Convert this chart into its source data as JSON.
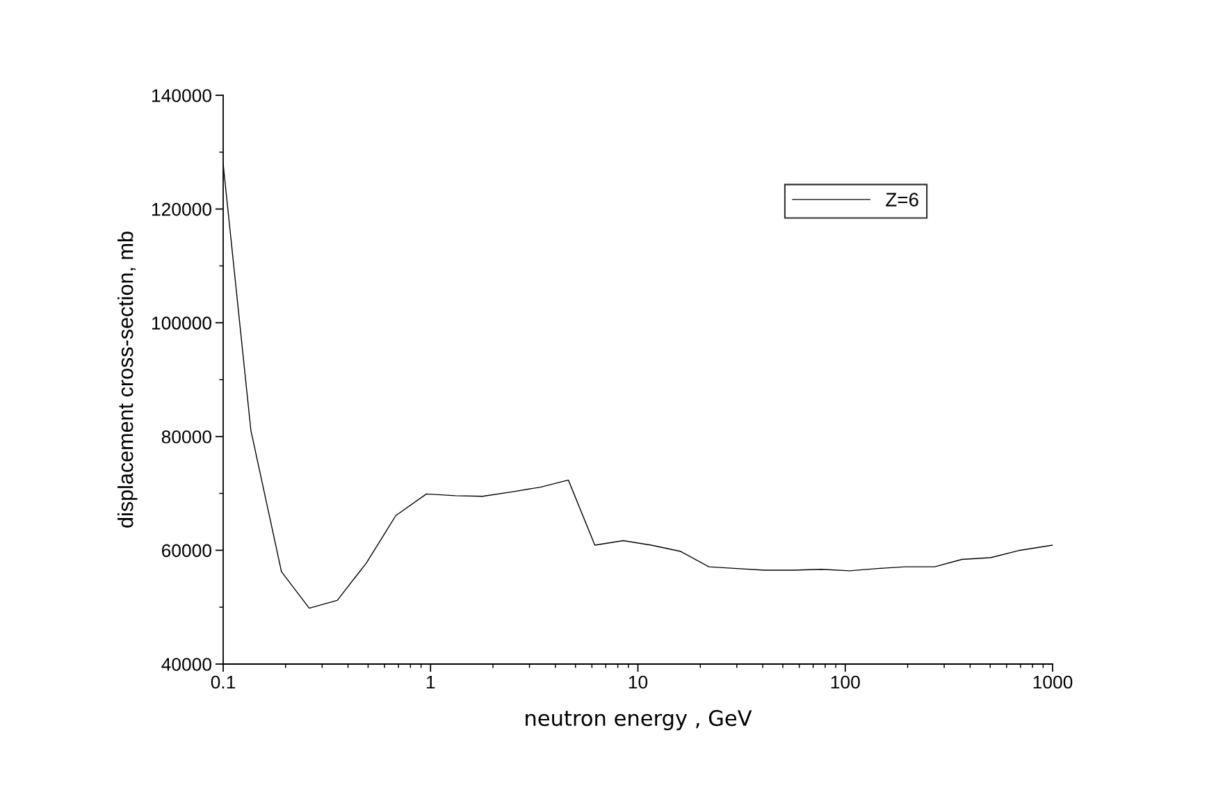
{
  "chart_data": {
    "type": "line",
    "xlabel": "neutron energy , GeV",
    "ylabel": "displacement cross-section, mb",
    "log": "x",
    "xlim": [
      0.1,
      1000
    ],
    "xticks": [
      0.1,
      1,
      10,
      100,
      1000
    ],
    "ylim": [
      40000,
      140000
    ],
    "yticks": [
      40000,
      60000,
      80000,
      100000,
      120000,
      140000
    ],
    "grid": false,
    "legend": "top right",
    "marker": "none",
    "line_style": "solid",
    "series": [
      {
        "name": "Z=6",
        "color": "#000000",
        "x": [
          0.1,
          0.136,
          0.191,
          0.26,
          0.355,
          0.49,
          0.68,
          0.955,
          1.32,
          1.78,
          2.5,
          3.39,
          4.62,
          6.2,
          8.5,
          11.6,
          16.1,
          22,
          30,
          40.9,
          56,
          77,
          105,
          143,
          194,
          270,
          365,
          502,
          685,
          1000
        ],
        "values": [
          127900,
          81100,
          56250,
          49830,
          51200,
          57750,
          66100,
          69900,
          69600,
          69500,
          70300,
          71100,
          72350,
          60900,
          61700,
          60900,
          59800,
          57100,
          56800,
          56500,
          56500,
          56650,
          56400,
          56800,
          57100,
          57100,
          58400,
          58700,
          59950,
          60900
        ]
      }
    ]
  }
}
